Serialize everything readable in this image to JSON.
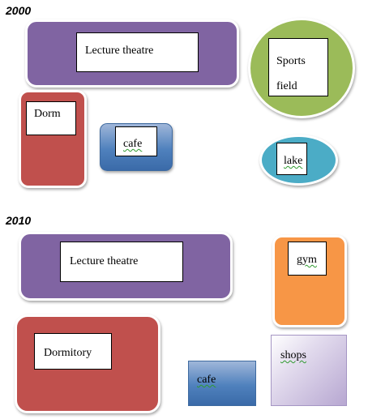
{
  "map_2000": {
    "year": "2000",
    "lecture_theatre": "Lecture theatre",
    "sports_field_line1": "Sports",
    "sports_field_line2": "field",
    "dorm": "Dorm",
    "cafe": "cafe",
    "lake": "lake"
  },
  "map_2010": {
    "year": "2010",
    "lecture_theatre": "Lecture theatre",
    "gym": "gym",
    "dormitory": "Dormitory",
    "cafe": "cafe",
    "shops": "shops"
  },
  "colors": {
    "lecture_theatre": "#8064a2",
    "sports_field": "#9bbb59",
    "dorm": "#c0504d",
    "cafe": "#4f81bd",
    "lake": "#4bacc6",
    "gym": "#f79646",
    "shops": "#b7a7d1"
  }
}
